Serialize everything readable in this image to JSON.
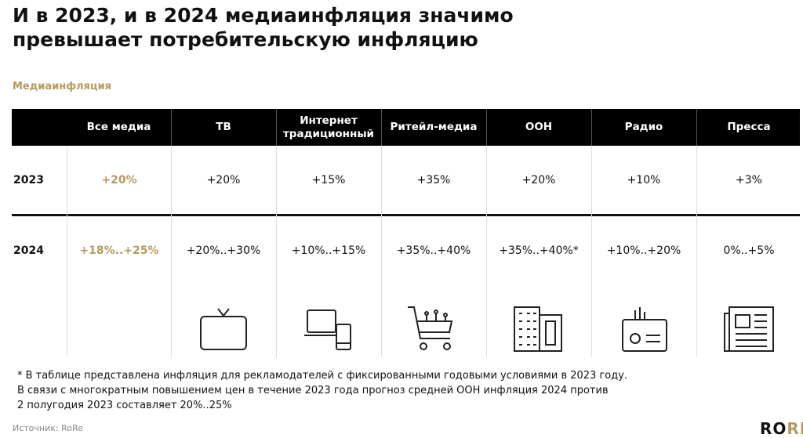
{
  "header": {
    "title": "И в 2023, и в 2024 медиаинфляция значимо превышает потребительскую инфляцию",
    "subtitle": "Медиаинфляция"
  },
  "table": {
    "columns": [
      "Все медиа",
      "ТВ",
      "Интернет традиционный",
      "Ритейл-медиа",
      "OOH",
      "Радио",
      "Пресса"
    ],
    "rows": [
      {
        "label": "2023",
        "cells": [
          "+20%",
          "+20%",
          "+15%",
          "+35%",
          "+20%",
          "+10%",
          "+3%"
        ]
      },
      {
        "label": "2024",
        "cells": [
          "+18%..+25%",
          "+20%..+30%",
          "+10%..+15%",
          "+35%..+40%",
          "+35%..+40%*",
          "+10%..+20%",
          "0%..+5%"
        ]
      }
    ]
  },
  "footnote": [
    "* В таблице представлена инфляция для рекламодателей с фиксированными годовыми условиями в 2023 году.",
    "В связи с многократным повышением цен в течение 2023 года прогноз средней OOH инфляция 2024 против",
    "2 полугодия 2023 составляет 20%..25%"
  ],
  "source": "Источник: RoRe",
  "logo": [
    "RO",
    "RE"
  ]
}
